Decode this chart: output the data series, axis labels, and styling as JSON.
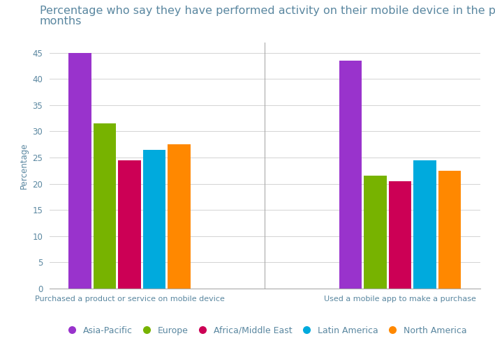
{
  "title_line1": "Percentage who say they have performed activity on their mobile device in the past six",
  "title_line2": "months",
  "ylabel": "Percentage",
  "categories": [
    "Purchased a product or service on mobile device",
    "Used a mobile app to make a purchase"
  ],
  "series": {
    "Asia-Pacific": [
      45,
      43.5
    ],
    "Europe": [
      31.5,
      21.5
    ],
    "Africa/Middle East": [
      24.5,
      20.5
    ],
    "Latin America": [
      26.5,
      24.5
    ],
    "North America": [
      27.5,
      22.5
    ]
  },
  "colors": {
    "Asia-Pacific": "#9933CC",
    "Europe": "#77B300",
    "Africa/Middle East": "#CC0055",
    "Latin America": "#00AADD",
    "North America": "#FF8800"
  },
  "ylim": [
    0,
    47
  ],
  "yticks": [
    0,
    5,
    10,
    15,
    20,
    25,
    30,
    35,
    40,
    45
  ],
  "bar_width": 0.55,
  "background_color": "#ffffff",
  "grid_color": "#cccccc",
  "title_color": "#5a87a0",
  "title_fontsize": 11.5,
  "axis_label_fontsize": 8.5,
  "tick_fontsize": 8.5,
  "legend_fontsize": 9,
  "xlabel_fontsize": 8
}
